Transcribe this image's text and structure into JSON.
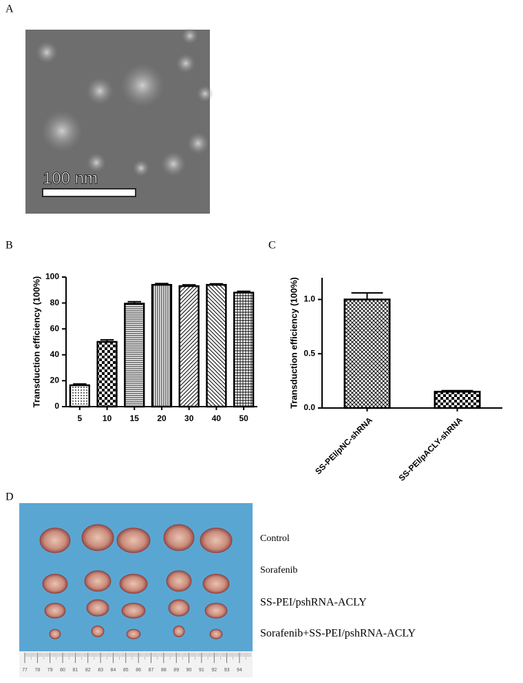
{
  "panels": {
    "A": {
      "label": "A",
      "scale_bar": "100 nm"
    },
    "D": {
      "label": "D",
      "groups": [
        "Control",
        "Sorafenib",
        "SS-PEI/pshRNA-ACLY",
        "Sorafenib+SS-PEI/pshRNA-ACLY"
      ],
      "ruler": [
        "77",
        "78",
        "79",
        "80",
        "81",
        "82",
        "83",
        "84",
        "85",
        "86",
        "87",
        "88",
        "89",
        "90",
        "91",
        "92",
        "93",
        "94"
      ]
    }
  },
  "chart_data": [
    {
      "type": "bar",
      "panel": "B",
      "ylabel": "Transduction efficiency (100%)",
      "categories": [
        "5",
        "10",
        "15",
        "20",
        "30",
        "40",
        "50"
      ],
      "values": [
        16.5,
        50,
        79.5,
        94,
        93,
        94,
        88
      ],
      "errors": [
        1,
        1.5,
        1.5,
        1,
        1,
        0.8,
        1
      ],
      "patterns": [
        "dots",
        "checker",
        "hlines",
        "vlines",
        "diag",
        "diag2",
        "grid"
      ],
      "ylim": [
        0,
        100
      ],
      "yticks": [
        0,
        20,
        40,
        60,
        80,
        100
      ],
      "color": "#000000"
    },
    {
      "type": "bar",
      "panel": "C",
      "ylabel": "Transduction efficiency (100%)",
      "categories": [
        "SS-PEI/pNC-shRNA",
        "SS-PEI/pACLY-shRNA"
      ],
      "values": [
        1.0,
        0.15
      ],
      "errors": [
        0.06,
        0.01
      ],
      "patterns": [
        "fine",
        "checker"
      ],
      "ylim": [
        0,
        1.2
      ],
      "yticks": [
        {
          "value": 0,
          "label": "0.0"
        },
        {
          "value": 0.5,
          "label": "0.5"
        },
        {
          "value": 1,
          "label": "1.0"
        }
      ],
      "color": "#000000"
    }
  ]
}
